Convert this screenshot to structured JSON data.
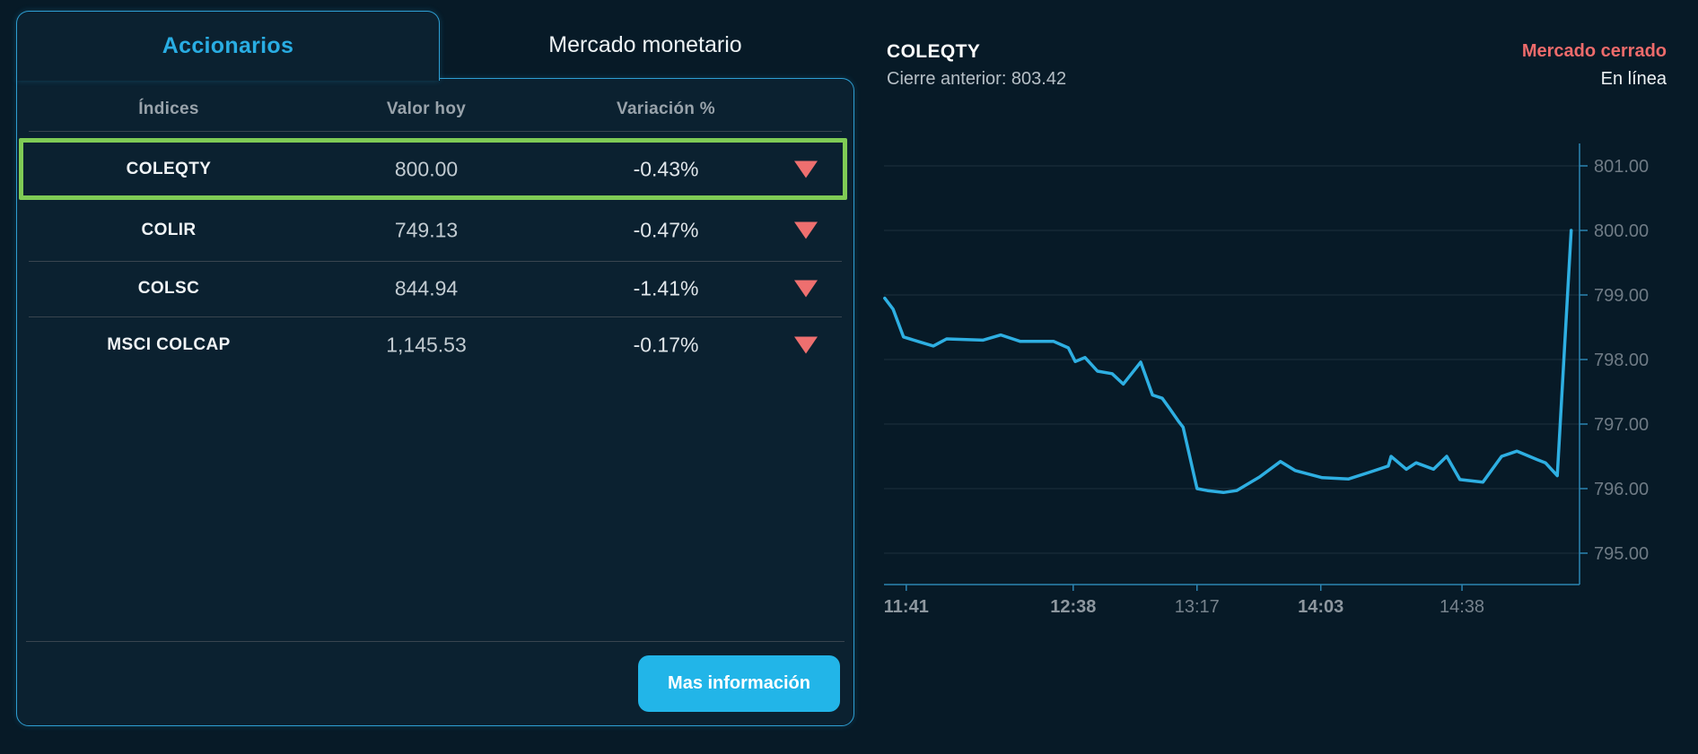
{
  "tabs": {
    "accionarios": "Accionarios",
    "mercado_monetario": "Mercado monetario"
  },
  "table": {
    "headers": [
      "Índices",
      "Valor hoy",
      "Variación %"
    ],
    "rows": [
      {
        "name": "COLEQTY",
        "value": "800.00",
        "change": "-0.43%",
        "direction": "down",
        "highlighted": true
      },
      {
        "name": "COLIR",
        "value": "749.13",
        "change": "-0.47%",
        "direction": "down",
        "highlighted": false
      },
      {
        "name": "COLSC",
        "value": "844.94",
        "change": "-1.41%",
        "direction": "down",
        "highlighted": false
      },
      {
        "name": "MSCI COLCAP",
        "value": "1,145.53",
        "change": "-0.17%",
        "direction": "down",
        "highlighted": false
      }
    ]
  },
  "footer": {
    "button_label": "Mas información"
  },
  "chart_header": {
    "title": "COLEQTY",
    "previous_close": "Cierre anterior: 803.42",
    "market_status": "Mercado cerrado",
    "online_status": "En línea"
  },
  "colors": {
    "accent_cyan": "#29ade3",
    "button_cyan": "#22b5e8",
    "line_cyan": "#2eafe2",
    "negative_salmon": "#ee6f6f",
    "highlight_green": "#7fcb55",
    "panel_border": "#2e9ed2",
    "background": "#071a27",
    "panel_background": "#0b2130"
  },
  "chart_data": {
    "type": "line",
    "title": "COLEQTY",
    "previous_close": 803.42,
    "ylim": [
      794.5,
      801.5
    ],
    "grid": true,
    "y_axis_side": "right",
    "line_color": "#2eafe2",
    "axis_color": "#2c84b2",
    "grid_color": "rgba(140,165,180,0.16)",
    "y_label_color": "#6f7b85",
    "x_label_bold_color": "#8d979f",
    "x_label_color": "#76828c",
    "y_ticks": [
      {
        "label": "801.00",
        "value": 801
      },
      {
        "label": "800.00",
        "value": 800
      },
      {
        "label": "799.00",
        "value": 799
      },
      {
        "label": "798.00",
        "value": 798
      },
      {
        "label": "797.00",
        "value": 797
      },
      {
        "label": "796.00",
        "value": 796
      },
      {
        "label": "795.00",
        "value": 795
      }
    ],
    "x_ticks": [
      {
        "label": "11:41",
        "pos": 0.032,
        "bold": true
      },
      {
        "label": "12:38",
        "pos": 0.272,
        "bold": true
      },
      {
        "label": "13:17",
        "pos": 0.45,
        "bold": false
      },
      {
        "label": "14:03",
        "pos": 0.628,
        "bold": true
      },
      {
        "label": "14:38",
        "pos": 0.831,
        "bold": false
      }
    ],
    "points": [
      [
        0.001,
        798.95
      ],
      [
        0.013,
        798.78
      ],
      [
        0.028,
        798.35
      ],
      [
        0.052,
        798.27
      ],
      [
        0.071,
        798.21
      ],
      [
        0.09,
        798.32
      ],
      [
        0.142,
        798.3
      ],
      [
        0.168,
        798.38
      ],
      [
        0.196,
        798.28
      ],
      [
        0.244,
        798.28
      ],
      [
        0.265,
        798.18
      ],
      [
        0.275,
        797.97
      ],
      [
        0.289,
        798.03
      ],
      [
        0.307,
        797.82
      ],
      [
        0.328,
        797.78
      ],
      [
        0.344,
        797.62
      ],
      [
        0.369,
        797.96
      ],
      [
        0.386,
        797.45
      ],
      [
        0.4,
        797.4
      ],
      [
        0.41,
        797.25
      ],
      [
        0.423,
        797.05
      ],
      [
        0.43,
        796.95
      ],
      [
        0.45,
        796.0
      ],
      [
        0.465,
        795.97
      ],
      [
        0.488,
        795.94
      ],
      [
        0.507,
        795.97
      ],
      [
        0.54,
        796.18
      ],
      [
        0.57,
        796.42
      ],
      [
        0.591,
        796.28
      ],
      [
        0.63,
        796.17
      ],
      [
        0.668,
        796.15
      ],
      [
        0.697,
        796.25
      ],
      [
        0.725,
        796.35
      ],
      [
        0.729,
        796.5
      ],
      [
        0.751,
        796.3
      ],
      [
        0.765,
        796.4
      ],
      [
        0.79,
        796.3
      ],
      [
        0.809,
        796.5
      ],
      [
        0.828,
        796.14
      ],
      [
        0.861,
        796.1
      ],
      [
        0.888,
        796.5
      ],
      [
        0.91,
        796.58
      ],
      [
        0.939,
        796.45
      ],
      [
        0.951,
        796.4
      ],
      [
        0.968,
        796.2
      ],
      [
        0.988,
        800.0
      ]
    ]
  }
}
